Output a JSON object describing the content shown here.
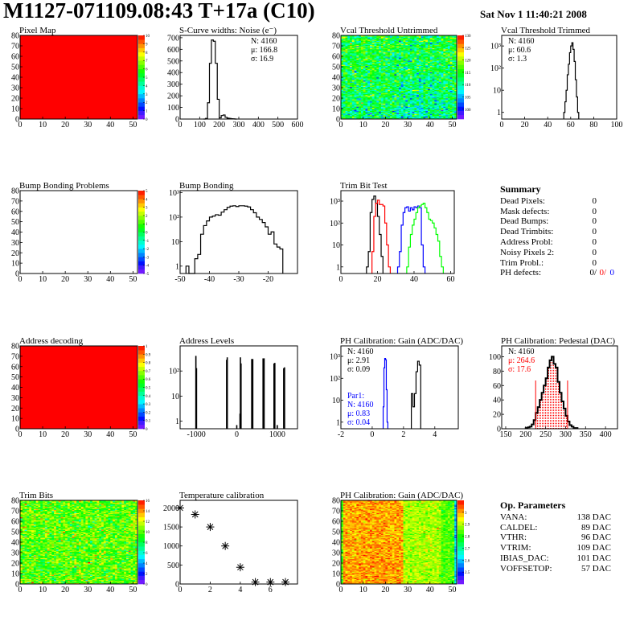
{
  "header": {
    "title": "M1127-071109.08:43 T+17a (C10)",
    "date": "Sat Nov  1 11:40:21 2008"
  },
  "summary": {
    "title": "Summary",
    "rows": [
      {
        "label": "Dead Pixels:",
        "value": "0"
      },
      {
        "label": "Mask defects:",
        "value": "0"
      },
      {
        "label": "Dead Bumps:",
        "value": "0"
      },
      {
        "label": "Dead Trimbits:",
        "value": "0"
      },
      {
        "label": "Address Probl:",
        "value": "0"
      },
      {
        "label": "Noisy Pixels 2:",
        "value": "0"
      },
      {
        "label": "Trim Probl.:",
        "value": "0"
      }
    ],
    "ph_defects": {
      "label": "PH defects:",
      "v1": "0/",
      "v2": "0/",
      "v3": "0",
      "c1": "#000000",
      "c2": "#ff0000",
      "c3": "#0000ff"
    }
  },
  "op_parameters": {
    "title": "Op. Parameters",
    "rows": [
      {
        "label": "VANA:",
        "value": "138 DAC"
      },
      {
        "label": "CALDEL:",
        "value": "89 DAC"
      },
      {
        "label": "VTHR:",
        "value": "96 DAC"
      },
      {
        "label": "VTRIM:",
        "value": "109 DAC"
      },
      {
        "label": "IBIAS_DAC:",
        "value": "101 DAC"
      },
      {
        "label": "VOFFSETOP:",
        "value": "57 DAC"
      }
    ]
  },
  "chart_data": [
    {
      "id": "pixel_map",
      "type": "heatmap",
      "title": "Pixel Map",
      "xlim": [
        0,
        52
      ],
      "ylim": [
        0,
        80
      ],
      "xticks": [
        0,
        10,
        20,
        30,
        40,
        50
      ],
      "yticks": [
        0,
        10,
        20,
        30,
        40,
        50,
        60,
        70,
        80
      ],
      "zlim": [
        0,
        10
      ],
      "zticks": [
        0,
        1,
        2,
        3,
        4,
        5,
        6,
        7,
        8,
        9,
        10
      ],
      "uniform_value": 10
    },
    {
      "id": "scurve",
      "type": "histogram",
      "title": "S-Curve widths: Noise (e⁻)",
      "xlim": [
        0,
        600
      ],
      "ylim": [
        0,
        720
      ],
      "ylog": false,
      "xticks": [
        0,
        100,
        200,
        300,
        400,
        500,
        600
      ],
      "yticks": [
        0,
        100,
        200,
        300,
        400,
        500,
        600,
        700
      ],
      "series": [
        {
          "color": "#000000",
          "start": 120,
          "width": 10,
          "counts": [
            0,
            5,
            140,
            480,
            680,
            670,
            480,
            170,
            10,
            30,
            35,
            15,
            8,
            5,
            3,
            2,
            0
          ]
        }
      ],
      "stats": [
        {
          "text": "N: 4160",
          "color": "#000000"
        },
        {
          "text": "μ: 166.8",
          "color": "#000000"
        },
        {
          "text": "σ: 16.9",
          "color": "#000000"
        }
      ]
    },
    {
      "id": "vcal_untrimmed",
      "type": "heatmap",
      "title": "Vcal Threshold Untrimmed",
      "xlim": [
        0,
        52
      ],
      "ylim": [
        0,
        80
      ],
      "xticks": [
        0,
        10,
        20,
        30,
        40,
        50
      ],
      "yticks": [
        0,
        10,
        20,
        30,
        40,
        50,
        60,
        70,
        80
      ],
      "zlim": [
        96,
        130
      ],
      "zticks": [
        100,
        105,
        110,
        115,
        120,
        125,
        130
      ],
      "mean": 112,
      "spread": 4
    },
    {
      "id": "vcal_trimmed",
      "type": "histogram",
      "title": "Vcal Threshold Trimmed",
      "xlim": [
        0,
        100
      ],
      "ylim": [
        0.5,
        3000
      ],
      "ylog": true,
      "xticks": [
        0,
        20,
        40,
        60,
        80,
        100
      ],
      "yticks": [
        1,
        10,
        100,
        1000
      ],
      "ytick_labels": [
        "1",
        "10",
        "10²",
        "10³"
      ],
      "series": [
        {
          "color": "#000000",
          "start": 54,
          "width": 1,
          "counts": [
            1,
            3,
            10,
            50,
            150,
            500,
            1000,
            1400,
            700,
            200,
            30,
            5,
            1
          ]
        }
      ],
      "stats": [
        {
          "text": "N: 4160",
          "color": "#000000"
        },
        {
          "text": "μ: 60.6",
          "color": "#000000"
        },
        {
          "text": "σ:  1.3",
          "color": "#000000"
        }
      ]
    },
    {
      "id": "bump_problems",
      "type": "heatmap",
      "title": "Bump Bonding Problems",
      "xlim": [
        0,
        52
      ],
      "ylim": [
        0,
        80
      ],
      "xticks": [
        0,
        10,
        20,
        30,
        40,
        50
      ],
      "yticks": [
        0,
        10,
        20,
        30,
        40,
        50,
        60,
        70,
        80
      ],
      "zlim": [
        -5,
        5
      ],
      "zticks": [
        -5,
        -4,
        -3,
        -2,
        -1,
        0,
        1,
        2,
        3,
        4,
        5
      ],
      "empty": true
    },
    {
      "id": "bump_bonding",
      "type": "histogram",
      "title": "Bump Bonding",
      "xlim": [
        -50,
        -10
      ],
      "ylim": [
        0.5,
        1200
      ],
      "ylog": true,
      "xticks": [
        -50,
        -40,
        -30,
        -20
      ],
      "yticks": [
        1,
        10,
        100,
        1000
      ],
      "ytick_labels": [
        "1",
        "10",
        "10²",
        "10³"
      ],
      "series": [
        {
          "color": "#000000",
          "start": -48,
          "width": 1,
          "counts": [
            1,
            0,
            0,
            2,
            3,
            20,
            45,
            70,
            100,
            110,
            125,
            120,
            160,
            200,
            250,
            280,
            290,
            270,
            290,
            290,
            280,
            260,
            200,
            150,
            100,
            80,
            60,
            40,
            20,
            25,
            8,
            6,
            5
          ]
        }
      ]
    },
    {
      "id": "trim_bit_test",
      "type": "histogram",
      "title": "Trim Bit Test",
      "xlim": [
        0,
        62
      ],
      "ylim": [
        0.5,
        3000
      ],
      "ylog": true,
      "xticks": [
        0,
        20,
        40,
        60
      ],
      "yticks": [
        1,
        10,
        100,
        1000
      ],
      "ytick_labels": [
        "1",
        "10",
        "10²",
        "10³"
      ],
      "series": [
        {
          "color": "#000000",
          "start": 14,
          "width": 1,
          "counts": [
            1,
            5,
            300,
            1200,
            1700,
            800,
            200,
            30,
            3
          ]
        },
        {
          "color": "#ff0000",
          "start": 17,
          "width": 1,
          "counts": [
            5,
            200,
            800,
            1100,
            700,
            700,
            600,
            100,
            10,
            1
          ]
        },
        {
          "color": "#0000ff",
          "start": 31,
          "width": 1,
          "counts": [
            1,
            5,
            80,
            300,
            500,
            550,
            350,
            500,
            400,
            550,
            500,
            600,
            500,
            10,
            1
          ]
        },
        {
          "color": "#00ff00",
          "start": 36,
          "width": 1,
          "counts": [
            1,
            8,
            30,
            80,
            150,
            300,
            500,
            600,
            700,
            800,
            500,
            300,
            150,
            130,
            100,
            60,
            30,
            15,
            3,
            1
          ]
        }
      ]
    },
    {
      "id": "address_decoding",
      "type": "heatmap",
      "title": "Address decoding",
      "xlim": [
        0,
        52
      ],
      "ylim": [
        0,
        80
      ],
      "xticks": [
        0,
        10,
        20,
        30,
        40,
        50
      ],
      "yticks": [
        0,
        10,
        20,
        30,
        40,
        50,
        60,
        70,
        80
      ],
      "zlim": [
        0,
        1
      ],
      "zticks": [
        0,
        0.1,
        0.2,
        0.3,
        0.4,
        0.5,
        0.6,
        0.7,
        0.8,
        0.9,
        1
      ],
      "uniform_value": 1
    },
    {
      "id": "address_levels",
      "type": "spikes",
      "title": "Address Levels",
      "xlim": [
        -1400,
        1500
      ],
      "ylim": [
        0.5,
        1000
      ],
      "ylog": true,
      "xticks": [
        -1000,
        0,
        1000
      ],
      "yticks": [
        1,
        10,
        100
      ],
      "ytick_labels": [
        "1",
        "10",
        "10²"
      ],
      "spikes": [
        [
          -1010,
          400
        ],
        [
          -995,
          130
        ],
        [
          -250,
          280
        ],
        [
          -235,
          350
        ],
        [
          0,
          0.7
        ],
        [
          80,
          2
        ],
        [
          90,
          350
        ],
        [
          105,
          200
        ],
        [
          370,
          300
        ],
        [
          395,
          300
        ],
        [
          650,
          320
        ],
        [
          675,
          320
        ],
        [
          920,
          200
        ],
        [
          940,
          210
        ],
        [
          1000,
          0.7
        ],
        [
          1160,
          130
        ],
        [
          1180,
          140
        ]
      ]
    },
    {
      "id": "ph_gain",
      "type": "histogram",
      "title": "PH Calibration: Gain (ADC/DAC)",
      "xlim": [
        -2,
        5.5
      ],
      "ylim": [
        0.5,
        3000
      ],
      "ylog": true,
      "xticks": [
        -2,
        0,
        2,
        4
      ],
      "yticks": [
        1,
        10,
        100,
        1000
      ],
      "ytick_labels": [
        "1",
        "10",
        "10²",
        "10³"
      ],
      "series": [
        {
          "color": "#000000",
          "start": 2.5,
          "width": 0.1,
          "counts": [
            20,
            5,
            20,
            200,
            600,
            400
          ]
        },
        {
          "color": "#0000ff",
          "start": 0.7,
          "width": 0.05,
          "counts": [
            5,
            300,
            800,
            700,
            30,
            1
          ]
        }
      ],
      "stats": [
        {
          "text": "N: 4160",
          "color": "#000000"
        },
        {
          "text": "μ: 2.91",
          "color": "#000000"
        },
        {
          "text": "σ: 0.09",
          "color": "#000000"
        }
      ],
      "stats2": [
        {
          "text": "Par1:",
          "color": "#0000ff"
        },
        {
          "text": "N: 4160",
          "color": "#0000ff"
        },
        {
          "text": "μ: 0.83",
          "color": "#0000ff"
        },
        {
          "text": "σ: 0.04",
          "color": "#0000ff"
        }
      ]
    },
    {
      "id": "ph_pedestal",
      "type": "histogram",
      "title": "PH Calibration: Pedestal (DAC)",
      "xlim": [
        140,
        430
      ],
      "ylim": [
        0,
        115
      ],
      "ylog": false,
      "xticks": [
        150,
        200,
        250,
        300,
        350,
        400
      ],
      "yticks": [
        0,
        20,
        40,
        60,
        80,
        100
      ],
      "series": [
        {
          "color": "#000000",
          "start": 200,
          "width": 5,
          "counts": [
            1,
            2,
            3,
            6,
            12,
            22,
            30,
            40,
            50,
            60,
            70,
            85,
            95,
            100,
            90,
            85,
            65,
            50,
            38,
            28,
            18,
            10,
            5,
            3,
            1,
            1
          ]
        }
      ],
      "fill_range": [
        225,
        305
      ],
      "fill_color": "#ff0000",
      "cut_line_height": 67,
      "stats": [
        {
          "text": "N: 4160",
          "color": "#000000"
        },
        {
          "text": "μ: 264.6",
          "color": "#ff0000"
        },
        {
          "text": "σ: 17.6",
          "color": "#ff0000"
        }
      ]
    },
    {
      "id": "trim_bits",
      "type": "heatmap",
      "title": "Trim Bits",
      "xlim": [
        0,
        52
      ],
      "ylim": [
        0,
        80
      ],
      "xticks": [
        0,
        10,
        20,
        30,
        40,
        50
      ],
      "yticks": [
        0,
        10,
        20,
        30,
        40,
        50,
        60,
        70,
        80
      ],
      "zlim": [
        0,
        16
      ],
      "zticks": [
        0,
        2,
        4,
        6,
        8,
        10,
        12,
        14,
        16
      ],
      "mean": 10,
      "spread": 1.6
    },
    {
      "id": "temperature",
      "type": "scatter",
      "title": "Temperature calibration",
      "xlim": [
        0,
        7.8
      ],
      "ylim": [
        0,
        2200
      ],
      "xticks": [
        0,
        2,
        4,
        6
      ],
      "yticks": [
        0,
        500,
        1000,
        1500,
        2000
      ],
      "x": [
        0,
        1,
        2,
        3,
        4,
        5,
        6,
        7
      ],
      "y": [
        2000,
        1830,
        1500,
        1000,
        440,
        50,
        50,
        50
      ]
    },
    {
      "id": "ph_gain_map",
      "type": "heatmap",
      "title": "PH Calibration: Gain (ADC/DAC)",
      "xlim": [
        0,
        52
      ],
      "ylim": [
        0,
        80
      ],
      "xticks": [
        0,
        10,
        20,
        30,
        40,
        50
      ],
      "yticks": [
        0,
        10,
        20,
        30,
        40,
        50,
        60,
        70,
        80
      ],
      "zlim": [
        2.4,
        3.1
      ],
      "zticks": [
        2.5,
        2.6,
        2.7,
        2.8,
        2.9,
        3
      ],
      "spread": 0.04,
      "column_means": [
        [
          0,
          1,
          2.82
        ],
        [
          1,
          28,
          3.0
        ],
        [
          28,
          45,
          2.89
        ],
        [
          45,
          51,
          2.83
        ],
        [
          51,
          52,
          2.6
        ]
      ]
    }
  ]
}
